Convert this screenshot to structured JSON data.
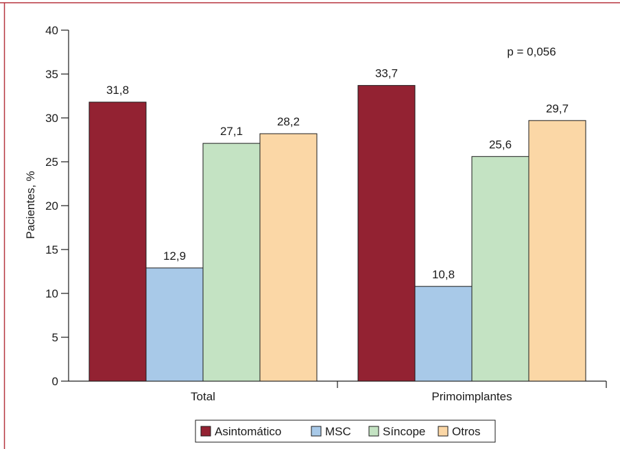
{
  "chart_data": {
    "type": "bar",
    "categories": [
      "Total",
      "Primoimplantes"
    ],
    "series": [
      {
        "name": "Asintomático",
        "values": [
          31.8,
          33.7
        ],
        "labels": [
          "31,8",
          "33,7"
        ],
        "color": "#932232"
      },
      {
        "name": "MSC",
        "values": [
          12.9,
          10.8
        ],
        "labels": [
          "12,9",
          "10,8"
        ],
        "color": "#a8c9e8"
      },
      {
        "name": "Síncope",
        "values": [
          27.1,
          25.6
        ],
        "labels": [
          "27,1",
          "25,6"
        ],
        "color": "#c4e3c3"
      },
      {
        "name": "Otros",
        "values": [
          28.2,
          29.7
        ],
        "labels": [
          "28,2",
          "29,7"
        ],
        "color": "#fbd7a6"
      }
    ],
    "ylabel": "Pacientes, %",
    "xlabel": "",
    "ylim": [
      0,
      40
    ],
    "yticks": [
      "0",
      "5",
      "10",
      "15",
      "20",
      "25",
      "30",
      "35",
      "40"
    ],
    "annotation": "p = 0,056",
    "legend_position": "bottom",
    "grid": false
  },
  "colors": {
    "frame": "#b5323d",
    "axis": "#1a1a1a"
  }
}
